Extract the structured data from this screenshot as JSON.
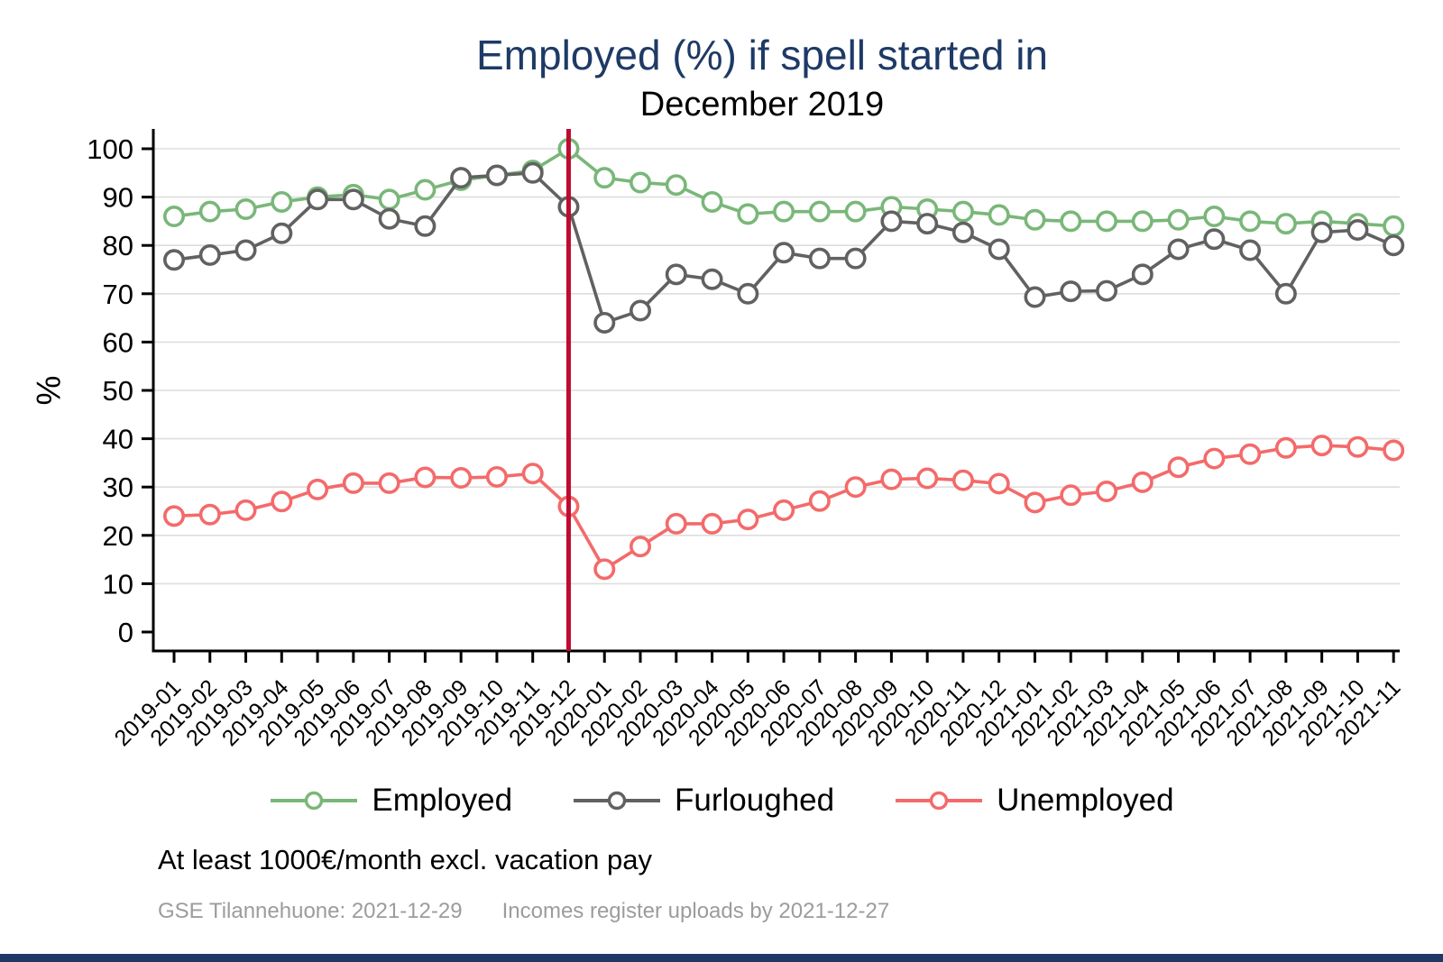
{
  "colors": {
    "title": "#1e3a66",
    "bottom_bar": "#1f3864",
    "grid": "#dedede",
    "axis": "#000000"
  },
  "footer": {
    "note": "At least 1000€/month excl. vacation pay",
    "source_left": "GSE Tilannehuone: 2021-12-29",
    "source_right": "Incomes register uploads by 2021-12-27"
  },
  "chart_data": {
    "type": "line",
    "title": "Employed (%) if spell started in",
    "subtitle": "December 2019",
    "xlabel": "",
    "ylabel": "%",
    "ylim": [
      0,
      100
    ],
    "yticks": [
      0,
      10,
      20,
      30,
      40,
      50,
      60,
      70,
      80,
      90,
      100
    ],
    "grid": true,
    "legend_position": "bottom",
    "vline": {
      "at": "2019-12",
      "color": "#bf0a30"
    },
    "categories": [
      "2019-01",
      "2019-02",
      "2019-03",
      "2019-04",
      "2019-05",
      "2019-06",
      "2019-07",
      "2019-08",
      "2019-09",
      "2019-10",
      "2019-11",
      "2019-12",
      "2020-01",
      "2020-02",
      "2020-03",
      "2020-04",
      "2020-05",
      "2020-06",
      "2020-07",
      "2020-08",
      "2020-09",
      "2020-10",
      "2020-11",
      "2020-12",
      "2021-01",
      "2021-02",
      "2021-03",
      "2021-04",
      "2021-05",
      "2021-06",
      "2021-07",
      "2021-08",
      "2021-09",
      "2021-10",
      "2021-11"
    ],
    "series": [
      {
        "name": "Employed",
        "color": "#79b779",
        "values": [
          86,
          87,
          87.5,
          89,
          90,
          90.5,
          89.5,
          91.5,
          93.5,
          94.5,
          95.5,
          100,
          94,
          93,
          92.5,
          89,
          86.5,
          87,
          87,
          87,
          88,
          87.5,
          87,
          86.3,
          85.3,
          85,
          85,
          85,
          85.3,
          86,
          85,
          84.5,
          85,
          84.5,
          84
        ]
      },
      {
        "name": "Furloughed",
        "color": "#616161",
        "values": [
          77,
          78,
          79,
          82.5,
          89.5,
          89.5,
          85.5,
          84,
          94,
          94.5,
          95,
          88,
          64,
          66.5,
          74,
          73,
          70,
          78.5,
          77.3,
          77.3,
          85,
          84.5,
          82.7,
          79.2,
          69.3,
          70.5,
          70.6,
          74,
          79.2,
          81.3,
          79,
          70,
          82.7,
          83.2,
          80
        ]
      },
      {
        "name": "Unemployed",
        "color": "#f46a6a",
        "values": [
          24,
          24.3,
          25.2,
          27,
          29.5,
          30.8,
          30.8,
          32,
          31.9,
          32.1,
          32.8,
          26,
          13,
          17.7,
          22.4,
          22.4,
          23.3,
          25.2,
          27.1,
          30,
          31.6,
          31.8,
          31.4,
          30.7,
          26.8,
          28.3,
          29.1,
          31,
          34.1,
          35.9,
          36.8,
          38.1,
          38.6,
          38.3,
          37.6
        ]
      }
    ]
  }
}
